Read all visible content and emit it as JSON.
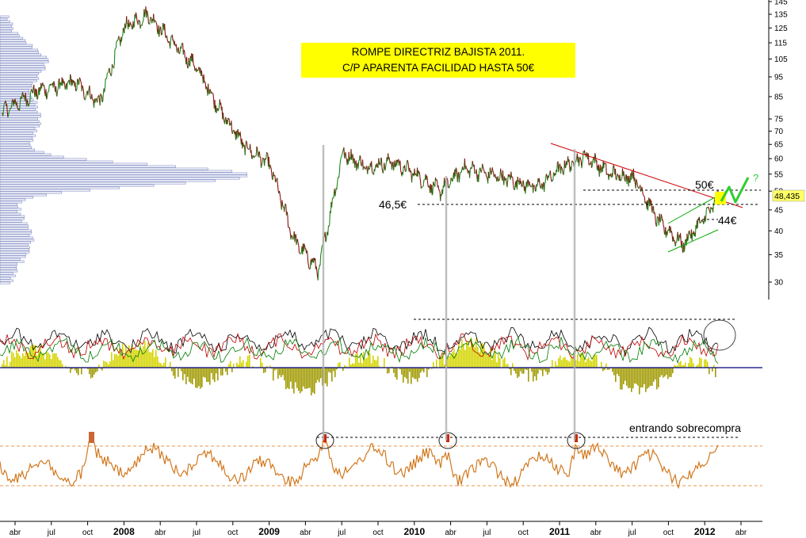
{
  "chart_data": [
    {
      "type": "line",
      "name": "price",
      "annotation": [
        "ROMPE DIRECTRIZ BAJISTA 2011.",
        "C/P APARENTA FACILIDAD HASTA 50€"
      ],
      "y_scale": "log",
      "ylim": [
        27,
        147
      ],
      "y_ticks": [
        30,
        35,
        40,
        45,
        50,
        55,
        60,
        65,
        70,
        75,
        85,
        95,
        105,
        115,
        125,
        135,
        145
      ],
      "last_value_label": "48,435",
      "level_labels": {
        "level_50": "50€",
        "level_46_5": "46,5€",
        "level_44": "44€",
        "question": "?"
      },
      "levels": [
        50,
        46.5,
        44
      ],
      "price_series": {
        "x": [
          "2007-03",
          "2007-06",
          "2007-09",
          "2007-11",
          "2008-01",
          "2008-03",
          "2008-05",
          "2008-07",
          "2008-09",
          "2008-11",
          "2009-01",
          "2009-03",
          "2009-05",
          "2009-07",
          "2009-09",
          "2009-11",
          "2010-01",
          "2010-03",
          "2010-05",
          "2010-07",
          "2010-09",
          "2010-11",
          "2011-01",
          "2011-03",
          "2011-05",
          "2011-07",
          "2011-09",
          "2011-11",
          "2012-01",
          "2012-02"
        ],
        "y": [
          78,
          88,
          92,
          82,
          125,
          135,
          115,
          100,
          78,
          64,
          58,
          38,
          32,
          62,
          57,
          59,
          55,
          50,
          57,
          55,
          53,
          51,
          57,
          61,
          55,
          54,
          42,
          37,
          44,
          48.4
        ]
      },
      "volume_profile_color": "#8c97c9"
    },
    {
      "type": "line",
      "name": "oscillators",
      "series_colors": {
        "black": "#000000",
        "red": "#c00000",
        "green": "#008000",
        "histogram": "#c8c800"
      }
    },
    {
      "type": "line",
      "name": "rsi",
      "annotation": "entrando sobrecompra",
      "line_color": "#d2781e",
      "band_color": "#e8964b"
    }
  ],
  "time_axis": {
    "labels": [
      "abr",
      "jul",
      "oct",
      "2008",
      "abr",
      "jul",
      "oct",
      "2009",
      "abr",
      "jul",
      "oct",
      "2010",
      "abr",
      "jul",
      "oct",
      "2011",
      "abr",
      "jul",
      "oct",
      "2012",
      "abr"
    ],
    "bold": [
      false,
      false,
      false,
      true,
      false,
      false,
      false,
      true,
      false,
      false,
      false,
      true,
      false,
      false,
      false,
      true,
      false,
      false,
      false,
      true,
      false
    ]
  },
  "colors": {
    "highlight": "#ffff00",
    "resistance": "#cc0000",
    "channel": "#00aa00",
    "forecast": "#33cc33",
    "marker": "#b0b0b0"
  }
}
